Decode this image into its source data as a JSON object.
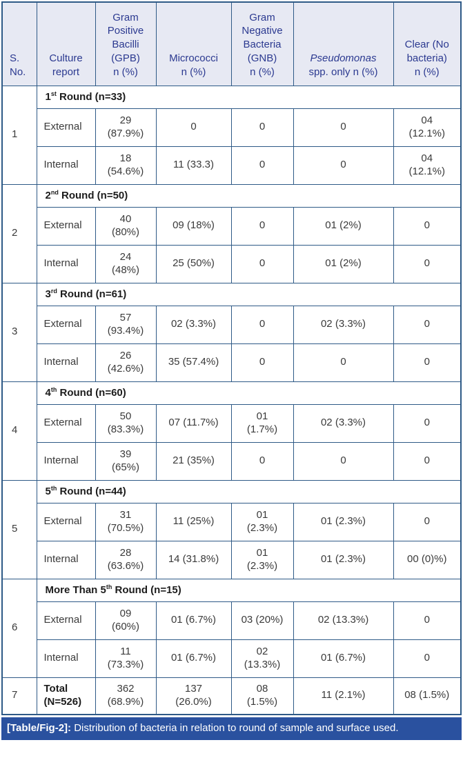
{
  "colors": {
    "border": "#2d5986",
    "header_bg": "#e7e9f3",
    "header_text": "#2b3990",
    "caption_bg": "#2a519f",
    "caption_text": "#ffffff",
    "body_text": "#3a3a3a",
    "title_text": "#1c1c1c"
  },
  "table": {
    "header": {
      "sno": "S.\nNo.",
      "culture": "Culture\nreport",
      "gpb": "Gram\nPositive\nBacilli\n(GPB)\nn (%)",
      "micrococci": "Micrococci\nn (%)",
      "gnb": "Gram\nNegative\nBacteria\n(GNB)\nn (%)",
      "pseudomonas_italic": "Pseudomonas",
      "pseudomonas_rest": "\nspp. only n (%)",
      "clear": "Clear (No\nbacteria)\nn (%)"
    },
    "rounds": [
      {
        "sno": "1",
        "title": {
          "prefix": "1",
          "sup": "st",
          "suffix": " Round (n=33)"
        },
        "external": {
          "label": "External",
          "cells": [
            "29\n(87.9%)",
            "0",
            "0",
            "0",
            "04\n(12.1%)"
          ]
        },
        "internal": {
          "label": "Internal",
          "cells": [
            "18\n(54.6%)",
            "11 (33.3)",
            "0",
            "0",
            "04\n(12.1%)"
          ]
        }
      },
      {
        "sno": "2",
        "title": {
          "prefix": "2",
          "sup": "nd",
          "suffix": " Round (n=50)"
        },
        "external": {
          "label": "External",
          "cells": [
            "40\n(80%)",
            "09 (18%)",
            "0",
            "01 (2%)",
            "0"
          ]
        },
        "internal": {
          "label": "Internal",
          "cells": [
            "24\n(48%)",
            "25 (50%)",
            "0",
            "01 (2%)",
            "0"
          ]
        }
      },
      {
        "sno": "3",
        "title": {
          "prefix": "3",
          "sup": "rd",
          "suffix": " Round (n=61)"
        },
        "external": {
          "label": "External",
          "cells": [
            "57\n(93.4%)",
            "02 (3.3%)",
            "0",
            "02 (3.3%)",
            "0"
          ]
        },
        "internal": {
          "label": "Internal",
          "cells": [
            "26\n(42.6%)",
            "35 (57.4%)",
            "0",
            "0",
            "0"
          ]
        }
      },
      {
        "sno": "4",
        "title": {
          "prefix": "4",
          "sup": "th",
          "suffix": " Round (n=60)"
        },
        "external": {
          "label": "External",
          "cells": [
            "50\n(83.3%)",
            "07 (11.7%)",
            "01\n(1.7%)",
            "02 (3.3%)",
            "0"
          ]
        },
        "internal": {
          "label": "Internal",
          "cells": [
            "39\n(65%)",
            "21 (35%)",
            "0",
            "0",
            "0"
          ]
        }
      },
      {
        "sno": "5",
        "title": {
          "prefix": "5",
          "sup": "th",
          "suffix": " Round (n=44)"
        },
        "external": {
          "label": "External",
          "cells": [
            "31\n(70.5%)",
            "11 (25%)",
            "01\n(2.3%)",
            "01 (2.3%)",
            "0"
          ]
        },
        "internal": {
          "label": "Internal",
          "cells": [
            "28\n(63.6%)",
            "14 (31.8%)",
            "01\n(2.3%)",
            "01 (2.3%)",
            "00 (0)%)"
          ]
        }
      },
      {
        "sno": "6",
        "title": {
          "prefix": "More Than 5",
          "sup": "th",
          "suffix": " Round (n=15)"
        },
        "external": {
          "label": "External",
          "cells": [
            "09\n(60%)",
            "01 (6.7%)",
            "03 (20%)",
            "02 (13.3%)",
            "0"
          ]
        },
        "internal": {
          "label": "Internal",
          "cells": [
            "11\n(73.3%)",
            "01 (6.7%)",
            "02\n(13.3%)",
            "01 (6.7%)",
            "0"
          ]
        }
      }
    ],
    "total": {
      "sno": "7",
      "label": "Total\n(N=526)",
      "cells": [
        "362\n(68.9%)",
        "137\n(26.0%)",
        "08\n(1.5%)",
        "11 (2.1%)",
        "08 (1.5%)"
      ]
    }
  },
  "caption": {
    "tag": "[Table/Fig-2]:",
    "text": " Distribution of bacteria in relation to round of sample and surface used."
  }
}
